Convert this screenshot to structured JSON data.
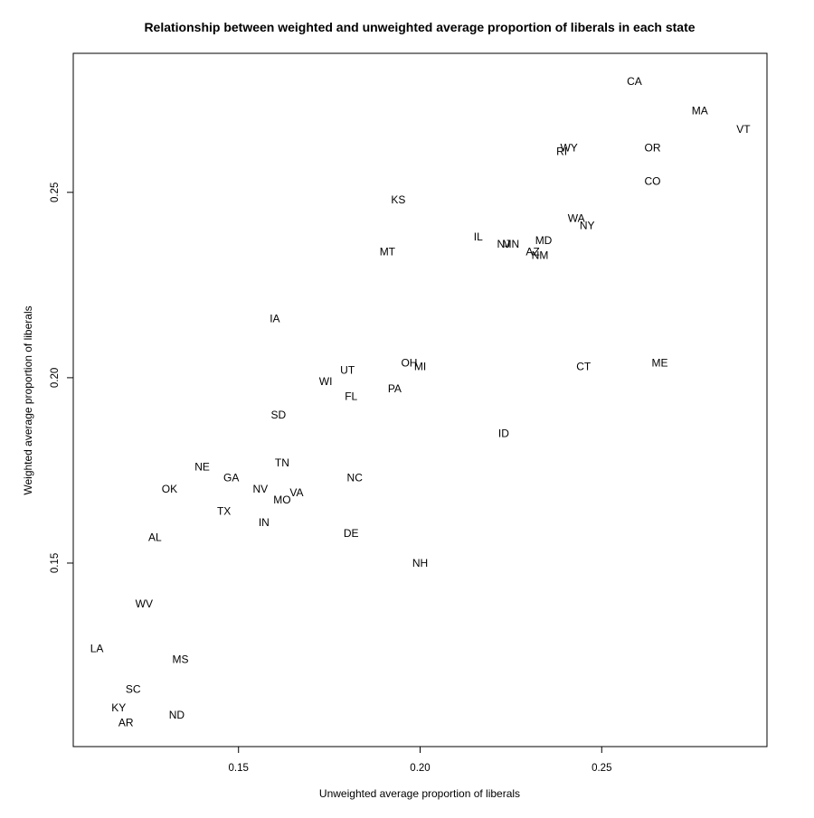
{
  "chart_data": {
    "type": "scatter",
    "title": "Relationship between weighted and unweighted average proportion of liberals in each state",
    "xlabel": "Unweighted average proportion of liberals",
    "ylabel": "Weighted average proportion of liberals",
    "xlim": [
      0.1045,
      0.2955
    ],
    "ylim": [
      0.1005,
      0.2875
    ],
    "xticks": [
      0.15,
      0.2,
      0.25
    ],
    "xtick_labels": [
      "0.15",
      "0.20",
      "0.25"
    ],
    "yticks": [
      0.15,
      0.2,
      0.25
    ],
    "ytick_labels": [
      "0.15",
      "0.20",
      "0.25"
    ],
    "grid": false,
    "legend": "none",
    "points": [
      {
        "label": "CA",
        "x": 0.259,
        "y": 0.28
      },
      {
        "label": "MA",
        "x": 0.277,
        "y": 0.272
      },
      {
        "label": "VT",
        "x": 0.289,
        "y": 0.267
      },
      {
        "label": "RI",
        "x": 0.239,
        "y": 0.261
      },
      {
        "label": "WY",
        "x": 0.241,
        "y": 0.262
      },
      {
        "label": "OR",
        "x": 0.264,
        "y": 0.262
      },
      {
        "label": "CO",
        "x": 0.264,
        "y": 0.253
      },
      {
        "label": "KS",
        "x": 0.194,
        "y": 0.248
      },
      {
        "label": "WA",
        "x": 0.243,
        "y": 0.243
      },
      {
        "label": "NY",
        "x": 0.246,
        "y": 0.241
      },
      {
        "label": "IL",
        "x": 0.216,
        "y": 0.238
      },
      {
        "label": "NJ",
        "x": 0.223,
        "y": 0.236
      },
      {
        "label": "MN",
        "x": 0.225,
        "y": 0.236
      },
      {
        "label": "MD",
        "x": 0.234,
        "y": 0.237
      },
      {
        "label": "AZ",
        "x": 0.231,
        "y": 0.234
      },
      {
        "label": "NM",
        "x": 0.233,
        "y": 0.233
      },
      {
        "label": "MT",
        "x": 0.191,
        "y": 0.234
      },
      {
        "label": "IA",
        "x": 0.16,
        "y": 0.216
      },
      {
        "label": "OH",
        "x": 0.197,
        "y": 0.204
      },
      {
        "label": "MI",
        "x": 0.2,
        "y": 0.203
      },
      {
        "label": "ME",
        "x": 0.266,
        "y": 0.204
      },
      {
        "label": "CT",
        "x": 0.245,
        "y": 0.203
      },
      {
        "label": "UT",
        "x": 0.18,
        "y": 0.202
      },
      {
        "label": "WI",
        "x": 0.174,
        "y": 0.199
      },
      {
        "label": "PA",
        "x": 0.193,
        "y": 0.197
      },
      {
        "label": "FL",
        "x": 0.181,
        "y": 0.195
      },
      {
        "label": "SD",
        "x": 0.161,
        "y": 0.19
      },
      {
        "label": "ID",
        "x": 0.223,
        "y": 0.185
      },
      {
        "label": "TN",
        "x": 0.162,
        "y": 0.177
      },
      {
        "label": "NE",
        "x": 0.14,
        "y": 0.176
      },
      {
        "label": "GA",
        "x": 0.148,
        "y": 0.173
      },
      {
        "label": "NC",
        "x": 0.182,
        "y": 0.173
      },
      {
        "label": "OK",
        "x": 0.131,
        "y": 0.17
      },
      {
        "label": "NV",
        "x": 0.156,
        "y": 0.17
      },
      {
        "label": "VA",
        "x": 0.166,
        "y": 0.169
      },
      {
        "label": "MO",
        "x": 0.162,
        "y": 0.167
      },
      {
        "label": "TX",
        "x": 0.146,
        "y": 0.164
      },
      {
        "label": "IN",
        "x": 0.157,
        "y": 0.161
      },
      {
        "label": "DE",
        "x": 0.181,
        "y": 0.158
      },
      {
        "label": "AL",
        "x": 0.127,
        "y": 0.157
      },
      {
        "label": "NH",
        "x": 0.2,
        "y": 0.15
      },
      {
        "label": "WV",
        "x": 0.124,
        "y": 0.139
      },
      {
        "label": "LA",
        "x": 0.111,
        "y": 0.127
      },
      {
        "label": "MS",
        "x": 0.134,
        "y": 0.124
      },
      {
        "label": "SC",
        "x": 0.121,
        "y": 0.116
      },
      {
        "label": "ND",
        "x": 0.133,
        "y": 0.109
      },
      {
        "label": "KY",
        "x": 0.117,
        "y": 0.111
      },
      {
        "label": "AR",
        "x": 0.119,
        "y": 0.107
      }
    ]
  }
}
